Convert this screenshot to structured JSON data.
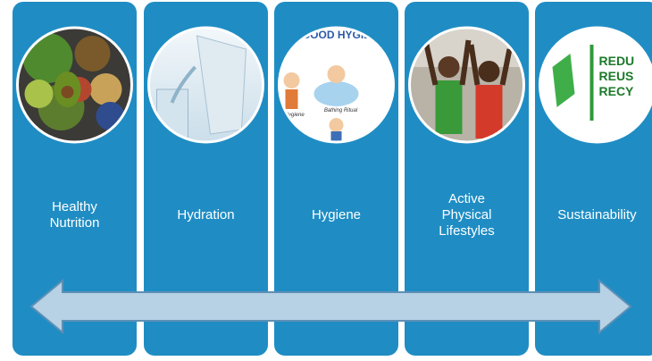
{
  "columns": [
    {
      "label_lines": [
        "Healthy",
        "Nutrition"
      ]
    },
    {
      "label_lines": [
        "Hydration"
      ]
    },
    {
      "label_lines": [
        "Hygiene"
      ],
      "image_texts": [
        "GOOD HYGIE",
        "Bathing Ritual",
        "al Hygiene"
      ]
    },
    {
      "label_lines": [
        "Active",
        "Physical",
        "Lifestyles"
      ]
    },
    {
      "label_lines": [
        "Sustainability"
      ],
      "image_texts": [
        "REDU",
        "REUS",
        "RECY"
      ]
    }
  ]
}
